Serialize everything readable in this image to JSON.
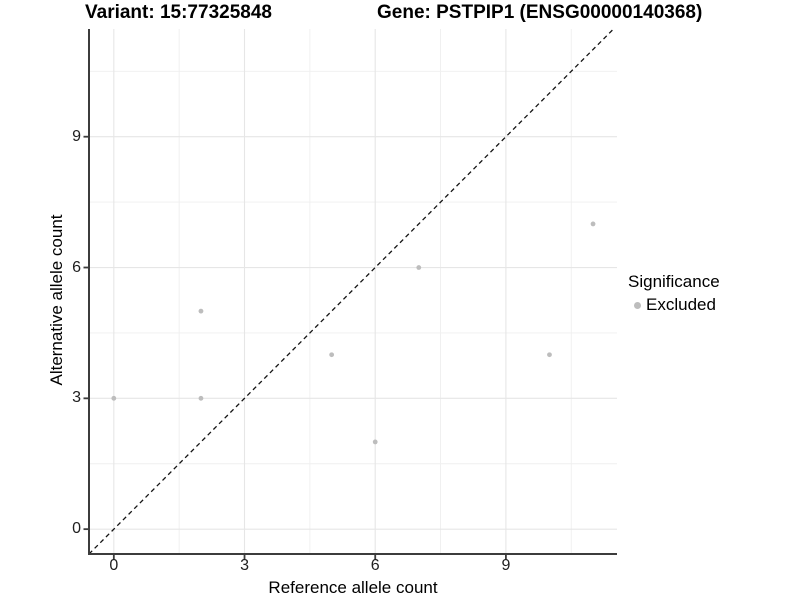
{
  "header": {
    "variant_title": "Variant: 15:77325848",
    "gene_title": "Gene: PSTPIP1 (ENSG00000140368)"
  },
  "legend": {
    "title": "Significance",
    "items": [
      {
        "label": "Excluded",
        "color": "#bdbdbd"
      }
    ]
  },
  "chart_data": {
    "type": "scatter",
    "title": "Variant: 15:77325848 / Gene: PSTPIP1 (ENSG00000140368)",
    "xlabel": "Reference allele count",
    "ylabel": "Alternative allele count",
    "x_ticks": [
      "0",
      "3",
      "6",
      "9"
    ],
    "y_ticks": [
      "0",
      "3",
      "6",
      "9"
    ],
    "x_tick_values": [
      0,
      3,
      6,
      9
    ],
    "y_tick_values": [
      0,
      3,
      6,
      9
    ],
    "x_minor": [
      1.5,
      4.5,
      7.5,
      10.5
    ],
    "y_minor": [
      1.5,
      4.5,
      7.5,
      10.5
    ],
    "xlim": [
      -0.57,
      11.55
    ],
    "ylim": [
      -0.57,
      11.47
    ],
    "grid": true,
    "legend_position": "right",
    "series": [
      {
        "name": "Excluded",
        "color": "#bdbdbd",
        "points": [
          [
            0,
            3
          ],
          [
            2,
            3
          ],
          [
            2,
            5
          ],
          [
            5,
            4
          ],
          [
            6,
            2
          ],
          [
            7,
            6
          ],
          [
            10,
            4
          ],
          [
            11,
            7
          ]
        ]
      }
    ],
    "reference_line": {
      "type": "identity y=x",
      "style": "dashed",
      "color": "#000000"
    }
  },
  "colors": {
    "background": "#ffffff",
    "grid_major": "#e6e6e6",
    "grid_minor": "#efefef",
    "axis_line": "#3c3c3c",
    "tick_mark": "#3c3c3c",
    "point": "#bdbdbd",
    "dashed_line": "#141414"
  }
}
